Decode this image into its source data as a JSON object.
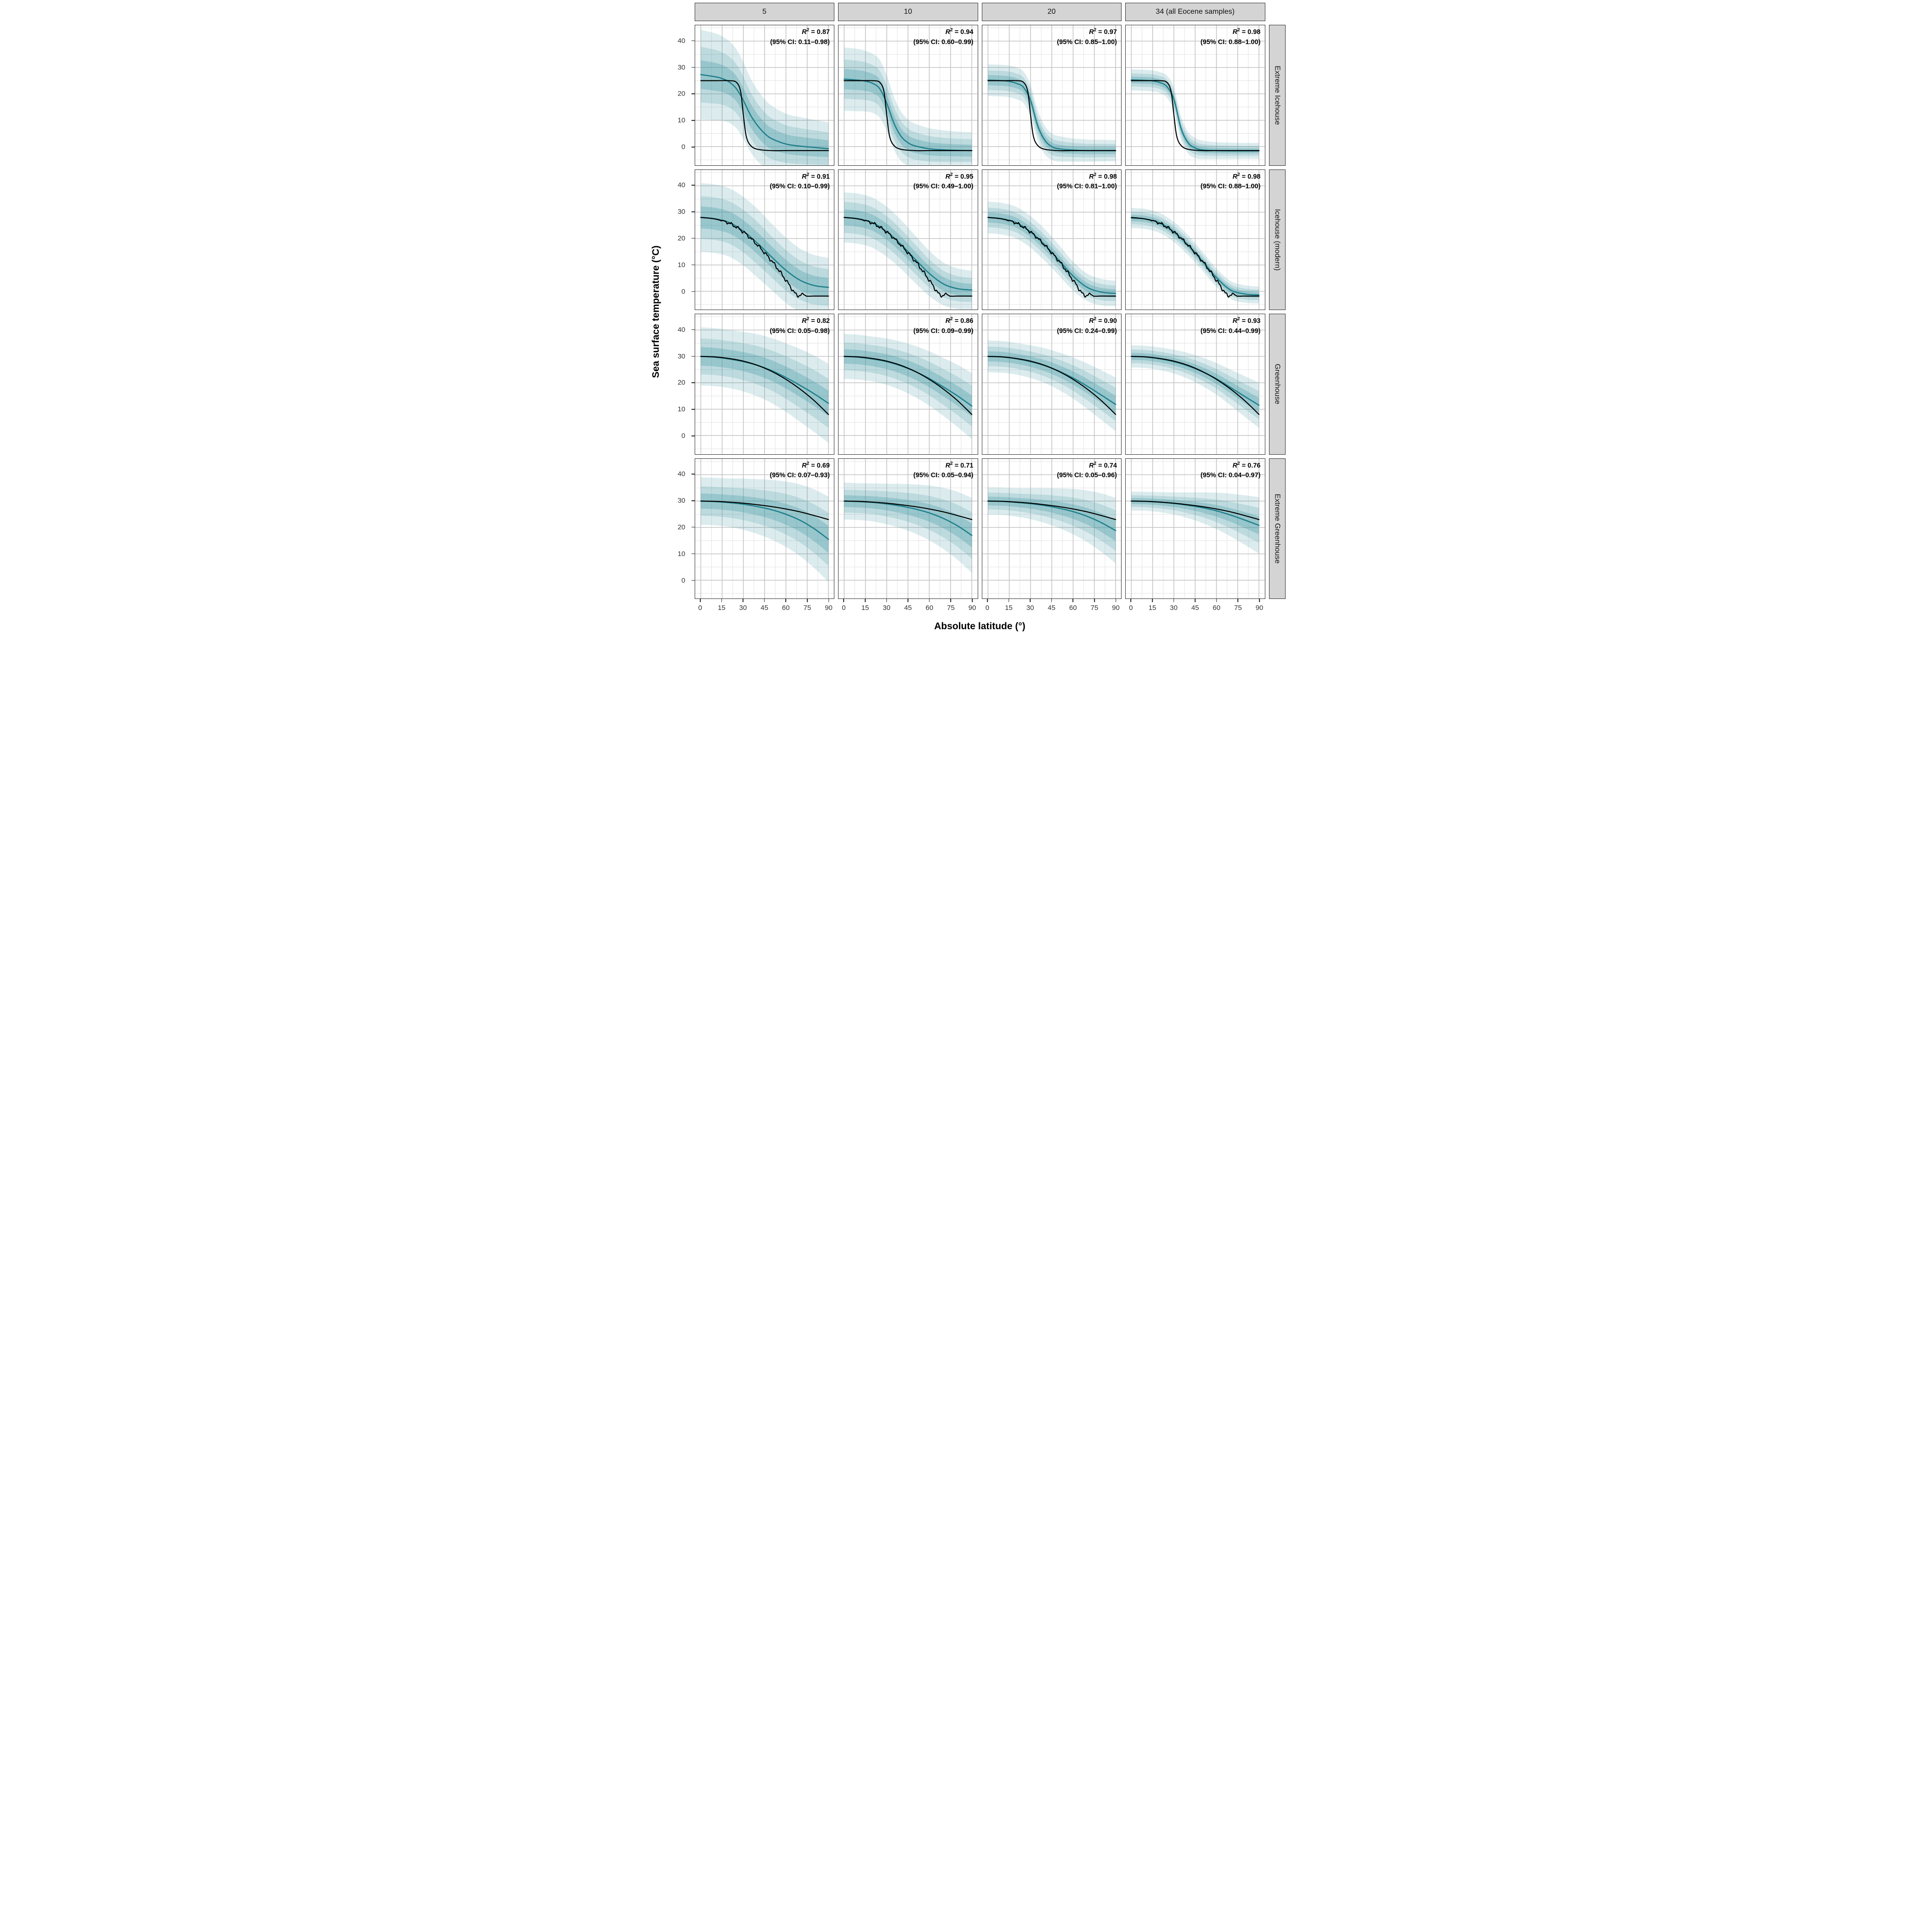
{
  "chart_data": {
    "type": "line",
    "title": "",
    "xlabel": "Absolute latitude (°)",
    "ylabel": "Sea surface temperature (°C)",
    "x_ticks": [
      0,
      15,
      30,
      45,
      60,
      75,
      90
    ],
    "y_ticks": [
      0,
      10,
      20,
      30,
      40
    ],
    "xlim": [
      -4,
      94
    ],
    "ylim": [
      -7,
      46
    ],
    "grid": true,
    "legend": "none",
    "col_labels": [
      "5",
      "10",
      "20",
      "34 (all Eocene samples)"
    ],
    "row_labels": [
      "Extreme Icehouse",
      "Icehouse (modern)",
      "Greenhouse",
      "Extreme Greenhouse"
    ],
    "colors": {
      "median_line": "#1f7f8b",
      "truth_line": "#000000",
      "ribbon": "#3f98a2",
      "strip_bg": "#d4d4d4",
      "panel_border": "#2b2b2b",
      "grid_major": "#c2c2c2",
      "grid_minor": "#e3e3e3"
    },
    "band_factors": [
      1.0,
      0.62,
      0.32
    ],
    "band_alphas": [
      0.18,
      0.2,
      0.3
    ],
    "labels": {
      "r2_var": "R",
      "r2_exp": "2",
      "eq": " = "
    },
    "x_default": [
      0,
      10,
      20,
      30,
      40,
      50,
      60,
      70,
      80,
      90
    ],
    "truth": [
      {
        "x": [
          0,
          10,
          20,
          25,
          28,
          30,
          32,
          35,
          40,
          50,
          60,
          70,
          80,
          90
        ],
        "y": [
          25,
          25,
          25,
          24.4,
          21,
          12,
          4,
          0.5,
          -1,
          -1.5,
          -1.5,
          -1.5,
          -1.5,
          -1.5
        ],
        "wiggly": false
      },
      {
        "x": [
          0,
          10,
          20,
          30,
          40,
          50,
          55,
          60,
          65,
          68,
          72,
          75,
          80,
          90
        ],
        "y": [
          28,
          27.4,
          25.8,
          22.5,
          17.5,
          11.5,
          8,
          4.2,
          0.3,
          -1.6,
          -1.1,
          -1.8,
          -1.8,
          -1.8
        ],
        "wiggly": true
      },
      {
        "x": [
          0,
          10,
          20,
          30,
          40,
          50,
          60,
          70,
          80,
          90
        ],
        "y": [
          30,
          29.8,
          29.2,
          28.2,
          26.6,
          24.3,
          21.3,
          17.6,
          13.2,
          8
        ],
        "wiggly": false
      },
      {
        "x": [
          0,
          10,
          20,
          30,
          40,
          50,
          60,
          70,
          80,
          90
        ],
        "y": [
          30,
          29.9,
          29.6,
          29.2,
          28.6,
          27.9,
          27,
          25.9,
          24.5,
          23
        ],
        "wiggly": false
      }
    ],
    "panels": [
      [
        {
          "r2": "0.87",
          "ci": "(95% CI: 0.11–0.98)",
          "x": [
            0,
            10,
            15,
            20,
            25,
            30,
            35,
            40,
            45,
            50,
            60,
            70,
            80,
            90
          ],
          "median": [
            27.3,
            26.5,
            25.8,
            24.5,
            22,
            17.5,
            12,
            8,
            5,
            3,
            1,
            0.2,
            -0.3,
            -0.8
          ],
          "spread": [
            17,
            16.5,
            16,
            15.5,
            15,
            14.5,
            14,
            13.5,
            13,
            12.5,
            11.5,
            11,
            10.5,
            10
          ]
        },
        {
          "r2": "0.94",
          "ci": "(95% CI: 0.60–0.99)",
          "x": [
            0,
            10,
            15,
            20,
            25,
            30,
            35,
            40,
            45,
            50,
            60,
            70,
            80,
            90
          ],
          "median": [
            25.6,
            25.2,
            24.8,
            24,
            22,
            16.5,
            9,
            4,
            1.5,
            0.3,
            -0.8,
            -1.2,
            -1.4,
            -1.5
          ],
          "spread": [
            12,
            11.8,
            11.5,
            11.2,
            11,
            10.6,
            10,
            9.4,
            8.8,
            8.4,
            7.8,
            7.4,
            7.1,
            7
          ]
        },
        {
          "r2": "0.97",
          "ci": "(95% CI: 0.85–1.00)",
          "x": [
            0,
            10,
            15,
            20,
            25,
            30,
            35,
            40,
            45,
            50,
            60,
            70,
            80,
            90
          ],
          "median": [
            25.2,
            25,
            24.7,
            24,
            22.5,
            17.5,
            8,
            2.5,
            0,
            -0.8,
            -1.3,
            -1.5,
            -1.5,
            -1.5
          ],
          "spread": [
            6,
            6,
            6,
            6,
            6,
            6,
            5.8,
            5.4,
            5,
            4.8,
            4.4,
            4.2,
            4.1,
            4
          ]
        },
        {
          "r2": "0.98",
          "ci": "(95% CI: 0.88–1.00)",
          "x": [
            0,
            10,
            15,
            20,
            25,
            30,
            35,
            40,
            45,
            50,
            60,
            70,
            80,
            90
          ],
          "median": [
            25.3,
            25.1,
            24.9,
            24.3,
            22.8,
            18,
            7,
            1.5,
            -0.5,
            -1.2,
            -1.5,
            -1.6,
            -1.6,
            -1.6
          ],
          "spread": [
            4,
            4,
            4,
            4,
            4.2,
            4.5,
            4.5,
            4.1,
            3.8,
            3.5,
            3.2,
            3.1,
            3,
            3
          ]
        }
      ],
      [
        {
          "r2": "0.91",
          "ci": "(95% CI: 0.10–0.99)",
          "median": [
            28,
            27.5,
            26.1,
            22.8,
            18.2,
            13,
            8,
            4.2,
            2.2,
            1.5
          ],
          "spread": [
            13,
            13,
            13,
            13,
            13,
            12.6,
            12.4,
            12,
            11.6,
            11.2
          ]
        },
        {
          "r2": "0.95",
          "ci": "(95% CI: 0.49–1.00)",
          "median": [
            28,
            27.5,
            26,
            22.6,
            17.8,
            12.2,
            6.8,
            2.8,
            1,
            0.5
          ],
          "spread": [
            9.5,
            9.5,
            9.5,
            9.5,
            9.3,
            9,
            8.6,
            8.1,
            7.7,
            7.3
          ]
        },
        {
          "r2": "0.98",
          "ci": "(95% CI: 0.81–1.00)",
          "median": [
            28,
            27.5,
            26,
            22.5,
            17.6,
            11.8,
            5.8,
            1.5,
            -0.3,
            -0.8
          ],
          "spread": [
            6,
            6,
            6,
            6,
            6,
            5.8,
            5.5,
            5.2,
            5,
            4.8
          ]
        },
        {
          "r2": "0.98",
          "ci": "(95% CI: 0.88–1.00)",
          "median": [
            27.8,
            27.4,
            25.9,
            22.5,
            17.5,
            11.5,
            5.2,
            0.5,
            -1,
            -1.4
          ],
          "spread": [
            3.8,
            3.8,
            3.8,
            3.8,
            3.8,
            3.6,
            3.5,
            3.4,
            3.3,
            3.2
          ]
        }
      ],
      [
        {
          "r2": "0.82",
          "ci": "(95% CI: 0.05–0.98)",
          "median": [
            30,
            29.7,
            29,
            28,
            26.6,
            24.6,
            22,
            19,
            15.8,
            12.2
          ],
          "spread": [
            11,
            11,
            11,
            11.3,
            11.8,
            12.3,
            13,
            13.8,
            14.5,
            15
          ]
        },
        {
          "r2": "0.86",
          "ci": "(95% CI: 0.09–0.99)",
          "median": [
            30,
            29.7,
            29,
            28,
            26.4,
            24.3,
            21.6,
            18.4,
            15,
            11.2
          ],
          "spread": [
            8.5,
            8.5,
            8.5,
            8.8,
            9.2,
            9.7,
            10.3,
            11,
            11.8,
            12.5
          ]
        },
        {
          "r2": "0.90",
          "ci": "(95% CI: 0.24–0.99)",
          "median": [
            30,
            29.8,
            29.1,
            28,
            26.5,
            24.4,
            21.8,
            18.7,
            15.3,
            11.8
          ],
          "spread": [
            6,
            6,
            6,
            6.2,
            6.6,
            7.1,
            7.8,
            8.6,
            9.4,
            10.2
          ]
        },
        {
          "r2": "0.93",
          "ci": "(95% CI: 0.44–0.99)",
          "median": [
            30,
            29.8,
            29.1,
            28,
            26.4,
            24.2,
            21.5,
            18.2,
            14.8,
            11.5
          ],
          "spread": [
            4.2,
            4.2,
            4.3,
            4.5,
            4.9,
            5.4,
            6,
            6.8,
            7.7,
            8.6
          ]
        }
      ],
      [
        {
          "r2": "0.69",
          "ci": "(95% CI: 0.07–0.93)",
          "median": [
            30,
            29.8,
            29.4,
            28.8,
            27.9,
            26.7,
            25,
            22.7,
            19.5,
            15.5
          ],
          "spread": [
            9,
            9,
            9.2,
            9.7,
            10.4,
            11.3,
            12.4,
            13.6,
            14.9,
            16.2
          ]
        },
        {
          "r2": "0.71",
          "ci": "(95% CI: 0.05–0.94)",
          "median": [
            30,
            29.8,
            29.5,
            28.9,
            28.1,
            27,
            25.5,
            23.4,
            20.6,
            17
          ],
          "spread": [
            7,
            7,
            7.2,
            7.7,
            8.4,
            9.3,
            10.4,
            11.6,
            12.9,
            14.2
          ]
        },
        {
          "r2": "0.74",
          "ci": "(95% CI: 0.05–0.96)",
          "median": [
            30,
            29.9,
            29.5,
            29,
            28.3,
            27.3,
            26,
            24.2,
            21.8,
            18.8
          ],
          "spread": [
            5.2,
            5.2,
            5.4,
            5.9,
            6.6,
            7.5,
            8.6,
            9.8,
            11.1,
            12.4
          ]
        },
        {
          "r2": "0.76",
          "ci": "(95% CI: 0.04–0.97)",
          "median": [
            30,
            29.9,
            29.6,
            29.1,
            28.4,
            27.5,
            26.3,
            24.7,
            22.8,
            20.8
          ],
          "spread": [
            3.6,
            3.6,
            3.8,
            4.2,
            4.9,
            5.8,
            6.9,
            8.1,
            9.4,
            10.7
          ]
        }
      ]
    ]
  }
}
